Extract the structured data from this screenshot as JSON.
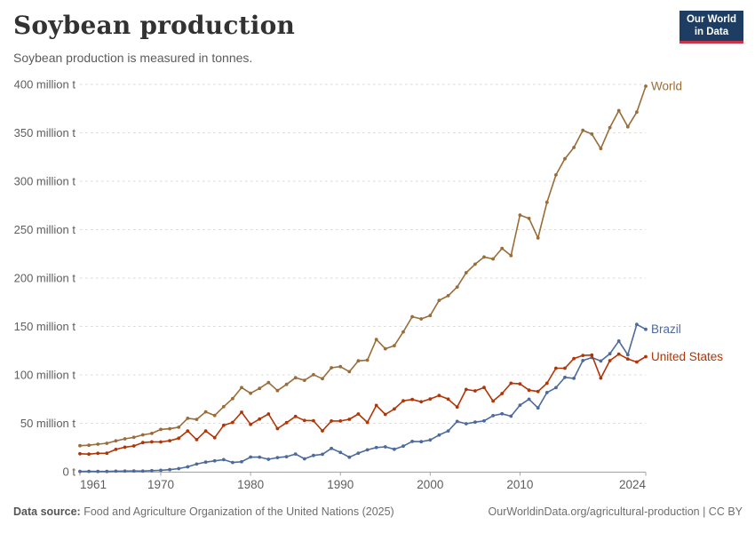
{
  "header": {
    "title": "Soybean production",
    "subtitle": "Soybean production is measured in tonnes."
  },
  "logo": {
    "line1": "Our World",
    "line2": "in Data",
    "bg": "#1d3d63",
    "accent": "#cc3345"
  },
  "footer": {
    "source_label": "Data source:",
    "source_text": " Food and Agriculture Organization of the United Nations (2025)",
    "link_text": "OurWorldinData.org/agricultural-production | CC BY"
  },
  "chart_data": {
    "type": "line",
    "title": "Soybean production",
    "subtitle": "Soybean production is measured in tonnes.",
    "unit": "million t",
    "xlabel": "",
    "ylabel": "",
    "xlim": [
      1961,
      2024
    ],
    "ylim": [
      0,
      400
    ],
    "grid": "horizontal-dashed",
    "legend_position": "end-of-line-labels",
    "x_ticks": [
      1961,
      1970,
      1980,
      1990,
      2000,
      2010,
      2024
    ],
    "y_ticks": [
      {
        "value": 0,
        "label": "0 t"
      },
      {
        "value": 50,
        "label": "50 million t"
      },
      {
        "value": 100,
        "label": "100 million t"
      },
      {
        "value": 150,
        "label": "150 million t"
      },
      {
        "value": 200,
        "label": "200 million t"
      },
      {
        "value": 250,
        "label": "250 million t"
      },
      {
        "value": 300,
        "label": "300 million t"
      },
      {
        "value": 350,
        "label": "350 million t"
      },
      {
        "value": 400,
        "label": "400 million t"
      }
    ],
    "x": [
      1961,
      1962,
      1963,
      1964,
      1965,
      1966,
      1967,
      1968,
      1969,
      1970,
      1971,
      1972,
      1973,
      1974,
      1975,
      1976,
      1977,
      1978,
      1979,
      1980,
      1981,
      1982,
      1983,
      1984,
      1985,
      1986,
      1987,
      1988,
      1989,
      1990,
      1991,
      1992,
      1993,
      1994,
      1995,
      1996,
      1997,
      1998,
      1999,
      2000,
      2001,
      2002,
      2003,
      2004,
      2005,
      2006,
      2007,
      2008,
      2009,
      2010,
      2011,
      2012,
      2013,
      2014,
      2015,
      2016,
      2017,
      2018,
      2019,
      2020,
      2021,
      2022,
      2023,
      2024
    ],
    "series": [
      {
        "name": "World",
        "color": "#996d39",
        "values": [
          26.9,
          27.3,
          28.4,
          29.4,
          31.8,
          33.9,
          35.5,
          38.1,
          39.5,
          43.7,
          44.4,
          46.0,
          55.1,
          54.0,
          61.8,
          58.1,
          67.2,
          75.5,
          86.9,
          81.0,
          86.1,
          92.1,
          83.8,
          90.2,
          97.1,
          94.4,
          100.2,
          96.1,
          107.3,
          108.5,
          103.3,
          114.5,
          115.2,
          136.5,
          127.0,
          130.2,
          144.4,
          160.1,
          157.8,
          161.3,
          177.0,
          181.7,
          190.7,
          205.5,
          214.3,
          221.7,
          219.7,
          230.6,
          223.2,
          265.0,
          261.6,
          241.4,
          278.3,
          306.5,
          323.2,
          334.9,
          352.6,
          348.7,
          333.7,
          355.4,
          372.9,
          356.2,
          371.4,
          398.2
        ]
      },
      {
        "name": "Brazil",
        "color": "#4c6a9c",
        "values": [
          0.27,
          0.35,
          0.32,
          0.3,
          0.52,
          0.6,
          0.72,
          0.65,
          1.06,
          1.51,
          2.08,
          3.22,
          5.01,
          7.88,
          9.89,
          11.23,
          12.51,
          9.54,
          10.24,
          15.16,
          15.01,
          12.84,
          14.58,
          15.54,
          18.28,
          13.33,
          16.82,
          18.02,
          24.07,
          19.9,
          14.94,
          19.21,
          22.59,
          24.93,
          25.68,
          23.17,
          26.43,
          31.31,
          30.99,
          32.73,
          37.91,
          42.11,
          51.92,
          49.55,
          51.18,
          52.46,
          57.86,
          59.83,
          57.35,
          68.76,
          74.82,
          65.85,
          81.72,
          86.76,
          97.46,
          96.39,
          114.73,
          117.91,
          114.32,
          121.8,
          134.93,
          120.7,
          152.14,
          147.06
        ]
      },
      {
        "name": "United States",
        "color": "#b13507",
        "values": [
          18.5,
          18.2,
          19.0,
          19.1,
          23.0,
          25.3,
          26.6,
          30.1,
          30.8,
          30.7,
          32.0,
          34.6,
          42.1,
          33.1,
          42.1,
          35.1,
          47.9,
          50.9,
          61.5,
          48.9,
          54.4,
          59.6,
          44.5,
          50.6,
          57.1,
          52.9,
          52.7,
          42.2,
          52.4,
          52.4,
          54.1,
          59.6,
          50.9,
          68.4,
          59.2,
          64.8,
          73.2,
          74.6,
          72.2,
          75.1,
          78.7,
          75.0,
          66.8,
          85.0,
          83.5,
          87.0,
          72.9,
          80.7,
          91.4,
          90.7,
          84.2,
          82.8,
          91.4,
          106.9,
          106.9,
          116.9,
          120.1,
          120.5,
          96.7,
          114.7,
          121.5,
          116.4,
          113.3,
          118.8
        ]
      }
    ]
  }
}
